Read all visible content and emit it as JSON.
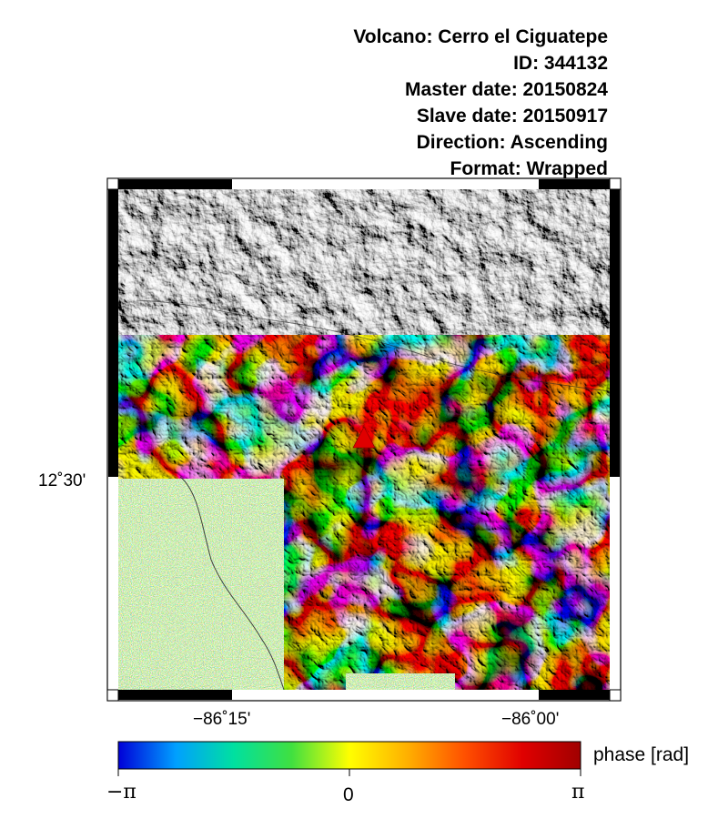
{
  "header": {
    "volcano": "Volcano: Cerro el Ciguatepe",
    "id": "ID: 344132",
    "master_date": "Master date: 20150824",
    "slave_date": "Slave date: 20150917",
    "direction": "Direction: Ascending",
    "format": "Format: Wrapped"
  },
  "axes": {
    "lat_label": "12˚30'",
    "lon_labels": [
      "−86˚15'",
      "−86˚00'"
    ]
  },
  "colorbar": {
    "label": "phase [rad]",
    "ticks": [
      "−π",
      "0",
      "π"
    ],
    "colors": [
      "#0000d8",
      "#00a0ff",
      "#00e0a0",
      "#40e040",
      "#ffff00",
      "#ffb000",
      "#ff5000",
      "#e00000",
      "#a00000"
    ]
  },
  "marker": {
    "symbol": "volcano-triangle",
    "color": "#e00000"
  }
}
